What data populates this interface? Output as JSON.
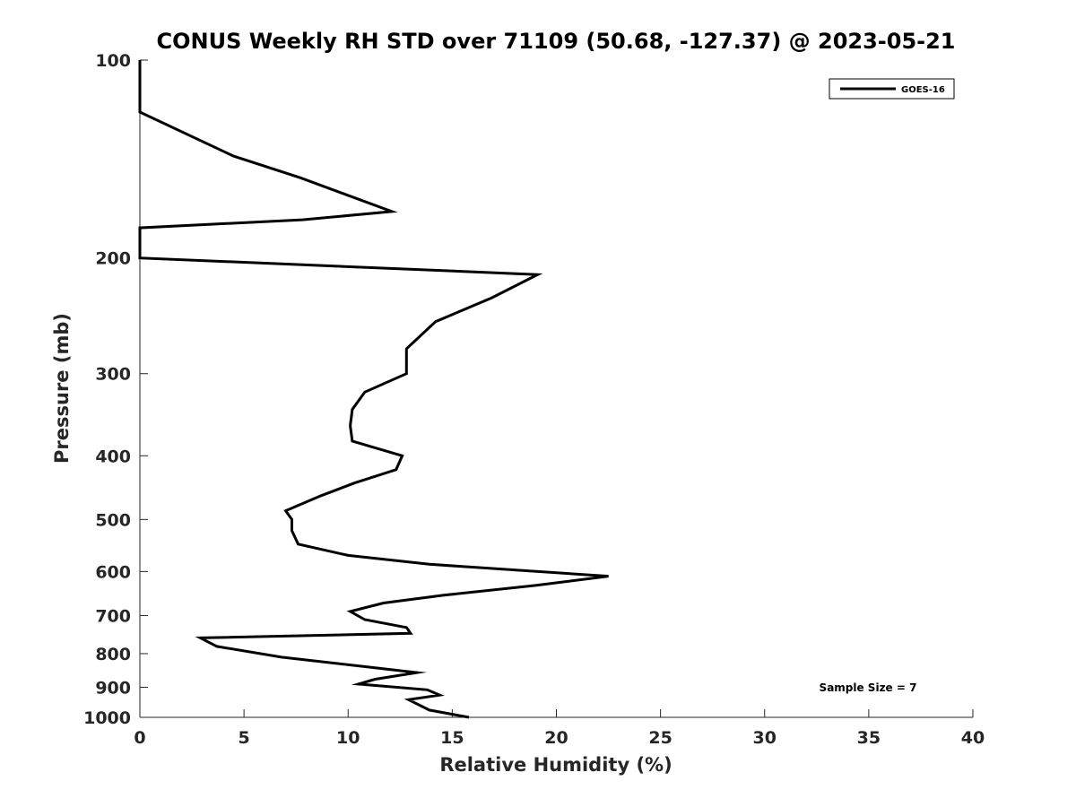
{
  "chart_data": {
    "type": "line",
    "title": "CONUS Weekly RH STD over 71109 (50.68, -127.37) @ 2023-05-21",
    "xlabel": "Relative Humidity (%)",
    "ylabel": "Pressure (mb)",
    "xlim": [
      0,
      40
    ],
    "ylim": [
      100,
      1000
    ],
    "yscale": "log",
    "y_reversed": true,
    "grid": false,
    "legend_position": "top-right",
    "xticks": [
      0,
      5,
      10,
      15,
      20,
      25,
      30,
      35,
      40
    ],
    "xtick_labels": [
      "0",
      "5",
      "10",
      "15",
      "20",
      "25",
      "30",
      "35",
      "40"
    ],
    "yticks": [
      100,
      200,
      300,
      400,
      500,
      600,
      700,
      800,
      900,
      1000
    ],
    "ytick_labels": [
      "100",
      "200",
      "300",
      "400",
      "500",
      "600",
      "700",
      "800",
      "900",
      "1000"
    ],
    "annotation": "Sample Size = 7",
    "series": [
      {
        "name": "GOES-16",
        "color": "#000000",
        "points": [
          [
            0,
            100
          ],
          [
            0,
            120
          ],
          [
            4.5,
            140
          ],
          [
            7.7,
            151
          ],
          [
            12.1,
            170
          ],
          [
            7.8,
            175
          ],
          [
            0,
            180
          ],
          [
            0,
            200
          ],
          [
            19.1,
            212
          ],
          [
            16.9,
            230
          ],
          [
            14.2,
            250
          ],
          [
            12.8,
            275
          ],
          [
            12.8,
            300
          ],
          [
            10.8,
            320
          ],
          [
            10.2,
            340
          ],
          [
            10.1,
            360
          ],
          [
            10.2,
            380
          ],
          [
            12.6,
            400
          ],
          [
            12.3,
            420
          ],
          [
            10.3,
            440
          ],
          [
            8.7,
            460
          ],
          [
            7.0,
            485
          ],
          [
            7.3,
            500
          ],
          [
            7.3,
            520
          ],
          [
            7.6,
            545
          ],
          [
            10.0,
            567
          ],
          [
            13.9,
            585
          ],
          [
            22.5,
            610
          ],
          [
            19.0,
            630
          ],
          [
            14.6,
            652
          ],
          [
            11.7,
            670
          ],
          [
            10.1,
            690
          ],
          [
            10.8,
            710
          ],
          [
            12.8,
            730
          ],
          [
            13.0,
            745
          ],
          [
            2.9,
            757
          ],
          [
            3.7,
            780
          ],
          [
            6.8,
            810
          ],
          [
            11.2,
            840
          ],
          [
            13.3,
            855
          ],
          [
            11.3,
            875
          ],
          [
            10.5,
            890
          ],
          [
            13.8,
            908
          ],
          [
            14.4,
            925
          ],
          [
            12.9,
            940
          ],
          [
            13.9,
            975
          ],
          [
            15.8,
            1000
          ]
        ]
      }
    ]
  }
}
